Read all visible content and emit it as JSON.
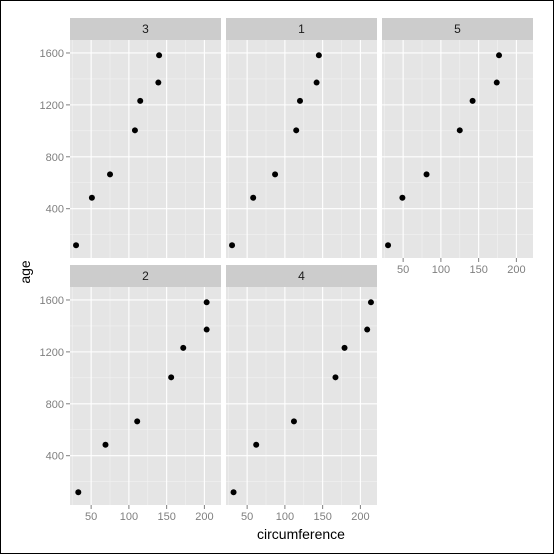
{
  "chart_data": {
    "type": "scatter",
    "xlabel": "circumference",
    "ylabel": "age",
    "x_ticks": [
      50,
      100,
      150,
      200
    ],
    "y_ticks": [
      400,
      800,
      1200,
      1600
    ],
    "xlim": [
      22,
      222
    ],
    "ylim": [
      20,
      1700
    ],
    "grid": true,
    "colors": {
      "panel_background": "#e5e5e5",
      "grid_major": "#ffffff",
      "grid_minor": "#f2f2f2",
      "strip_background": "#cccccc",
      "point": "#000000",
      "tick_text": "#7f7f7f"
    },
    "panels": [
      {
        "label": "3",
        "row": 0,
        "col": 0,
        "points": [
          {
            "x": 30,
            "y": 118
          },
          {
            "x": 51,
            "y": 484
          },
          {
            "x": 75,
            "y": 664
          },
          {
            "x": 108,
            "y": 1004
          },
          {
            "x": 115,
            "y": 1231
          },
          {
            "x": 139,
            "y": 1372
          },
          {
            "x": 140,
            "y": 1582
          }
        ]
      },
      {
        "label": "1",
        "row": 0,
        "col": 1,
        "points": [
          {
            "x": 30,
            "y": 118
          },
          {
            "x": 58,
            "y": 484
          },
          {
            "x": 87,
            "y": 664
          },
          {
            "x": 115,
            "y": 1004
          },
          {
            "x": 120,
            "y": 1231
          },
          {
            "x": 142,
            "y": 1372
          },
          {
            "x": 145,
            "y": 1582
          }
        ]
      },
      {
        "label": "5",
        "row": 0,
        "col": 2,
        "points": [
          {
            "x": 30,
            "y": 118
          },
          {
            "x": 49,
            "y": 484
          },
          {
            "x": 81,
            "y": 664
          },
          {
            "x": 125,
            "y": 1004
          },
          {
            "x": 142,
            "y": 1231
          },
          {
            "x": 174,
            "y": 1372
          },
          {
            "x": 177,
            "y": 1582
          }
        ]
      },
      {
        "label": "2",
        "row": 1,
        "col": 0,
        "points": [
          {
            "x": 33,
            "y": 118
          },
          {
            "x": 69,
            "y": 484
          },
          {
            "x": 111,
            "y": 664
          },
          {
            "x": 156,
            "y": 1004
          },
          {
            "x": 172,
            "y": 1231
          },
          {
            "x": 203,
            "y": 1372
          },
          {
            "x": 203,
            "y": 1582
          }
        ]
      },
      {
        "label": "4",
        "row": 1,
        "col": 1,
        "points": [
          {
            "x": 32,
            "y": 118
          },
          {
            "x": 62,
            "y": 484
          },
          {
            "x": 112,
            "y": 664
          },
          {
            "x": 167,
            "y": 1004
          },
          {
            "x": 179,
            "y": 1231
          },
          {
            "x": 209,
            "y": 1372
          },
          {
            "x": 214,
            "y": 1582
          }
        ]
      }
    ]
  }
}
